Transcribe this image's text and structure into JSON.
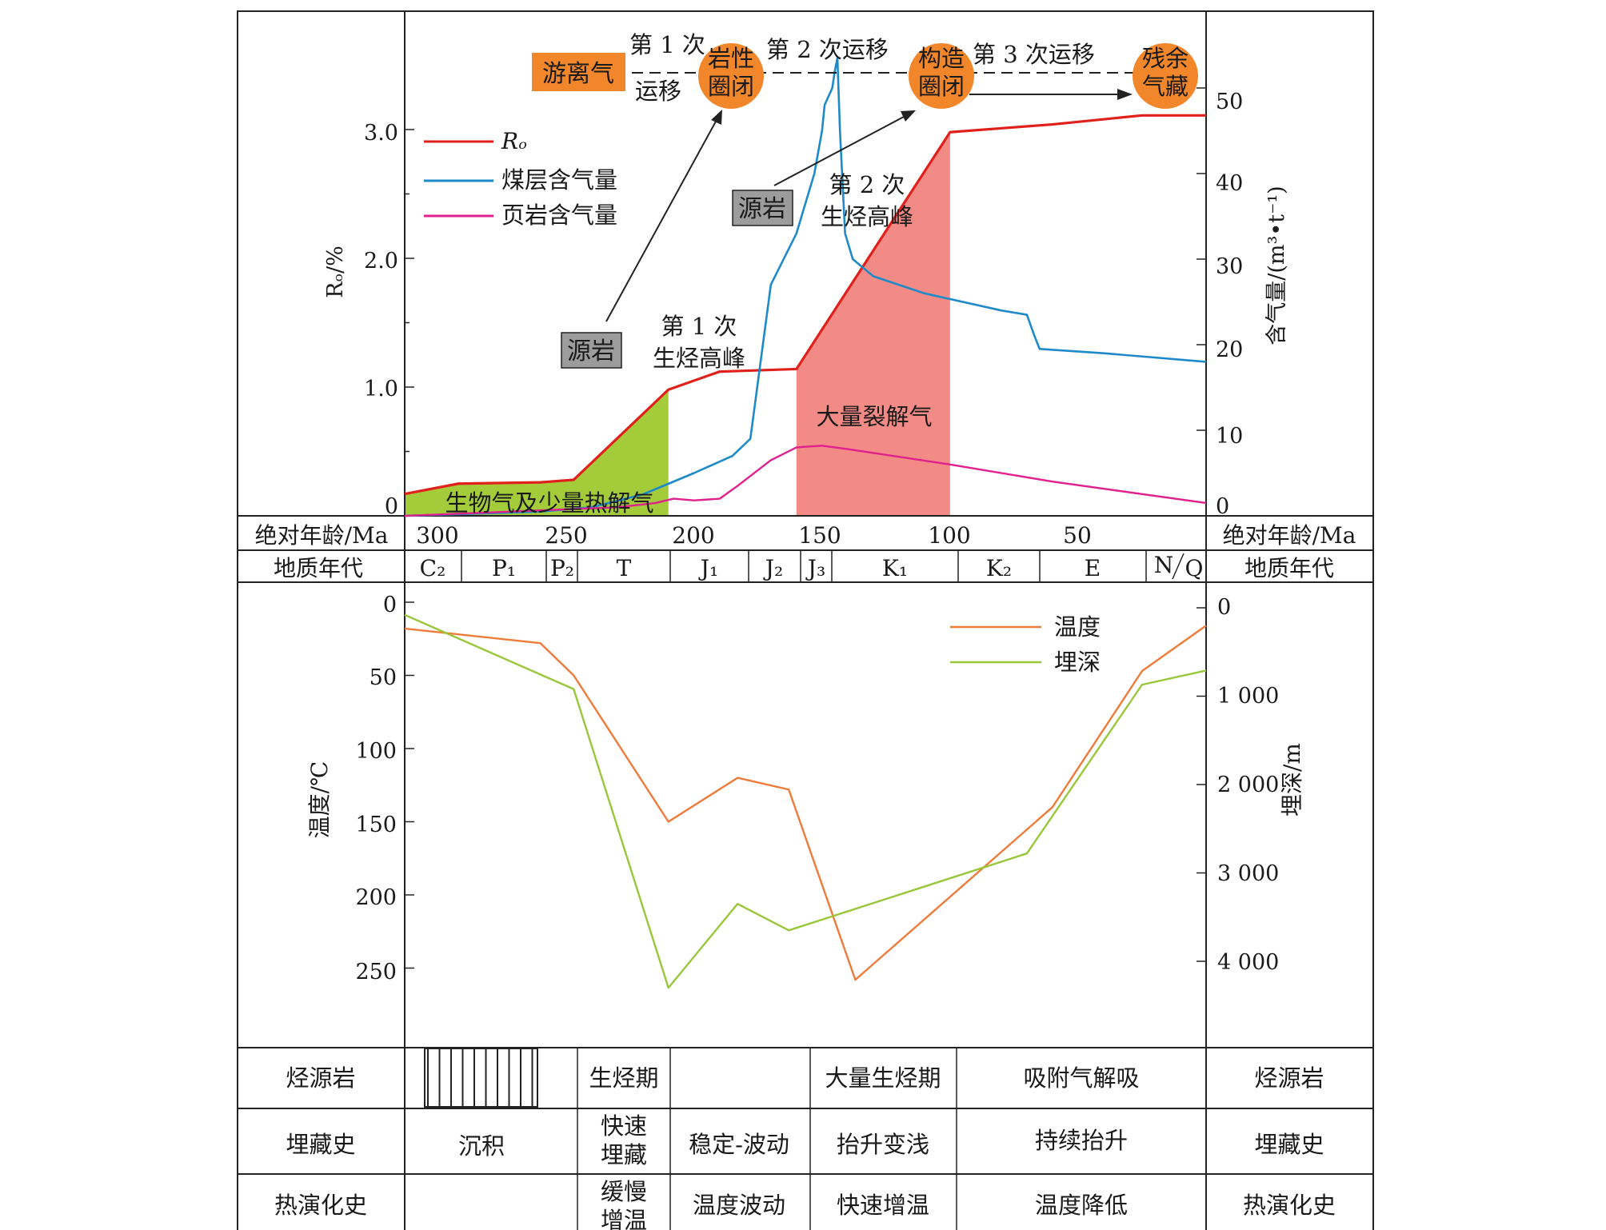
{
  "colors": {
    "ro": "#e0201b",
    "coal_gas": "#1f8ac9",
    "shale_gas": "#e0208c",
    "temperature": "#ef7b3a",
    "burial_depth": "#99c73a",
    "green_fill": "#a4cc3a",
    "red_fill": "#f28a86",
    "orange_node": "#f2862b",
    "gray_box": "#9c9c9c"
  },
  "top_chart": {
    "left_axis_label": "Rₒ/%",
    "left_ticks": [
      "0",
      "1.0",
      "2.0",
      "3.0"
    ],
    "right_axis_label": "含气量/(m³•t⁻¹)",
    "right_ticks": [
      "0",
      "10",
      "20",
      "30",
      "40",
      "50"
    ],
    "legend": [
      "Rₒ",
      "煤层含气量",
      "页岩含气量"
    ],
    "annotations": {
      "free_gas": "游离气",
      "migration1_top": "第 1 次",
      "migration1_bottom": "运移",
      "lith_trap_1": "岩性",
      "lith_trap_2": "圈闭",
      "migration2": "第 2 次运移",
      "struct_trap_1": "构造",
      "struct_trap_2": "圈闭",
      "migration3": "第 3 次运移",
      "residual_1": "残余",
      "residual_2": "气藏",
      "source_rock_a": "源岩",
      "source_rock_b": "源岩",
      "peak2_line1": "第 2 次",
      "peak2_line2": "生烃高峰",
      "peak1_line1": "第 1 次",
      "peak1_line2": "生烃高峰",
      "cracking_gas": "大量裂解气",
      "bio_gas": "生物气及少量热解气"
    }
  },
  "age_row": {
    "label_left": "绝对年龄/Ma",
    "label_right": "绝对年龄/Ma",
    "ticks": [
      "300",
      "250",
      "200",
      "150",
      "100",
      "50"
    ]
  },
  "period_row": {
    "label_left": "地质年代",
    "label_right": "地质年代",
    "periods": [
      "C₂",
      "P₁",
      "P₂",
      "T",
      "J₁",
      "J₂",
      "J₃",
      "K₁",
      "K₂",
      "E",
      "N",
      "Q"
    ]
  },
  "bottom_chart": {
    "left_axis_label": "温度/℃",
    "left_ticks": [
      "0",
      "50",
      "100",
      "150",
      "200",
      "250"
    ],
    "right_axis_label": "埋深/m",
    "right_ticks": [
      "0",
      "1 000",
      "2 000",
      "3 000",
      "4 000"
    ],
    "legend": [
      "温度",
      "埋深"
    ]
  },
  "table": {
    "rows": [
      {
        "label": "烃源岩",
        "cells": [
          "",
          "生烃期",
          "",
          "大量生烃期",
          "吸附气解吸"
        ],
        "label_right": "烃源岩"
      },
      {
        "label": "埋藏史",
        "cells": [
          "沉积",
          "快速\n埋藏",
          "稳定-波动",
          "抬升变浅",
          "持续抬升"
        ],
        "label_right": "埋藏史"
      },
      {
        "label": "热演化史",
        "cells": [
          "",
          "缓慢\n增温",
          "温度波动",
          "快速增温",
          "温度降低"
        ],
        "label_right": "热演化史"
      }
    ]
  },
  "chart_data": [
    {
      "type": "line",
      "xlabel": "绝对年龄/Ma",
      "xlim": [
        313,
        0
      ],
      "ylabel": "Rₒ/%",
      "ylim": [
        0,
        3.8
      ],
      "y2label": "含气量/(m³•t⁻¹)",
      "y2lim": [
        0,
        53
      ],
      "series": [
        {
          "name": "Rₒ",
          "axis": "left",
          "x": [
            313,
            292,
            260,
            247,
            210,
            190,
            160,
            100,
            60,
            25,
            0
          ],
          "y": [
            0.17,
            0.25,
            0.26,
            0.28,
            0.98,
            1.12,
            1.14,
            2.98,
            3.04,
            3.11,
            3.11
          ]
        },
        {
          "name": "煤层含气量",
          "axis": "left2",
          "x": [
            313,
            260,
            240,
            220,
            200,
            185,
            178,
            174,
            170,
            160,
            153,
            150,
            149,
            146,
            145,
            144,
            143,
            141,
            138,
            130,
            110,
            80,
            70,
            67,
            65,
            40,
            0
          ],
          "y": [
            0,
            0.5,
            1.0,
            2.5,
            5.0,
            7.0,
            9.0,
            18.0,
            27.0,
            33.0,
            40.0,
            45.0,
            48.0,
            50.0,
            52.0,
            53.5,
            45.0,
            33.0,
            30.0,
            28.0,
            26.0,
            24.0,
            23.5,
            21.0,
            19.5,
            19.0,
            18.0
          ]
        },
        {
          "name": "页岩含气量",
          "axis": "right",
          "x": [
            313,
            230,
            215,
            208,
            200,
            190,
            183,
            170,
            160,
            150,
            140,
            100,
            60,
            0
          ],
          "y": [
            0,
            1.0,
            1.5,
            2.0,
            1.8,
            2.0,
            3.5,
            6.5,
            8.0,
            8.2,
            7.8,
            6.0,
            4.0,
            1.5
          ]
        }
      ]
    },
    {
      "type": "line",
      "xlabel": "绝对年龄/Ma",
      "xlim": [
        313,
        0
      ],
      "ylabel": "温度/℃",
      "ylim": [
        0,
        300
      ],
      "y2label": "埋深/m",
      "y2lim": [
        0,
        5000
      ],
      "series": [
        {
          "name": "温度",
          "axis": "left",
          "x": [
            313,
            260,
            247,
            210,
            183,
            163,
            137,
            60,
            25,
            0
          ],
          "y": [
            18,
            28,
            50,
            150,
            120,
            128,
            258,
            140,
            47,
            16
          ]
        },
        {
          "name": "埋深",
          "axis": "right",
          "x": [
            313,
            247,
            210,
            183,
            163,
            70,
            25,
            0
          ],
          "y": [
            80,
            920,
            4300,
            3350,
            3650,
            2780,
            870,
            710
          ]
        }
      ]
    }
  ]
}
